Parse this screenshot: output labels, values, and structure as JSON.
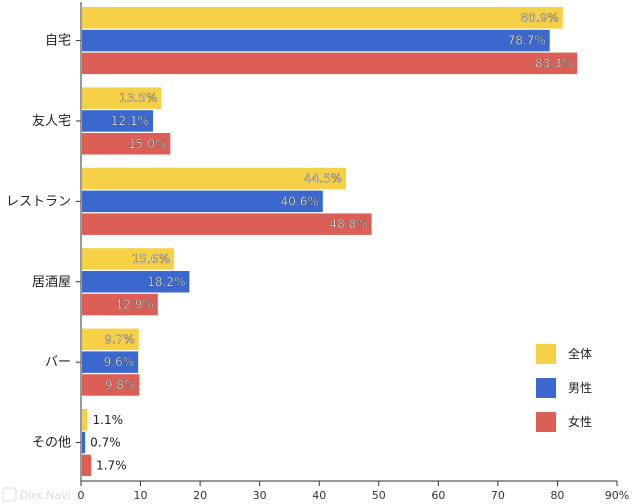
{
  "chart_data": {
    "type": "bar",
    "orientation": "horizontal",
    "categories": [
      "自宅",
      "友人宅",
      "レストラン",
      "居酒屋",
      "バー",
      "その他"
    ],
    "series": [
      {
        "name": "全体",
        "color": "#F6D046",
        "values": [
          80.9,
          13.5,
          44.5,
          15.6,
          9.7,
          1.1
        ]
      },
      {
        "name": "男性",
        "color": "#3A68CF",
        "values": [
          78.7,
          12.1,
          40.6,
          18.2,
          9.6,
          0.7
        ]
      },
      {
        "name": "女性",
        "color": "#DB5F54",
        "values": [
          83.3,
          15.0,
          48.8,
          12.9,
          9.8,
          1.7
        ]
      }
    ],
    "data_labels": [
      [
        "80.9%",
        "13.5%",
        "44.5%",
        "15.6%",
        "9.7%",
        "1.1%"
      ],
      [
        "78.7%",
        "12.1%",
        "40.6%",
        "18.2%",
        "9.6%",
        "0.7%"
      ],
      [
        "83.3%",
        "15.0%",
        "48.8%",
        "12.9%",
        "9.8%",
        "1.7%"
      ]
    ],
    "x_ticks": [
      0,
      10,
      20,
      30,
      40,
      50,
      60,
      70,
      80,
      90
    ],
    "x_tick_labels": [
      "0",
      "10",
      "20",
      "30",
      "40",
      "50",
      "60",
      "70",
      "80",
      "90%"
    ],
    "xlim": [
      0,
      90
    ],
    "xlabel": "",
    "ylabel": "",
    "title": "",
    "grid": false,
    "legend_position": "bottom-right"
  },
  "watermark": "Diet.Navi"
}
